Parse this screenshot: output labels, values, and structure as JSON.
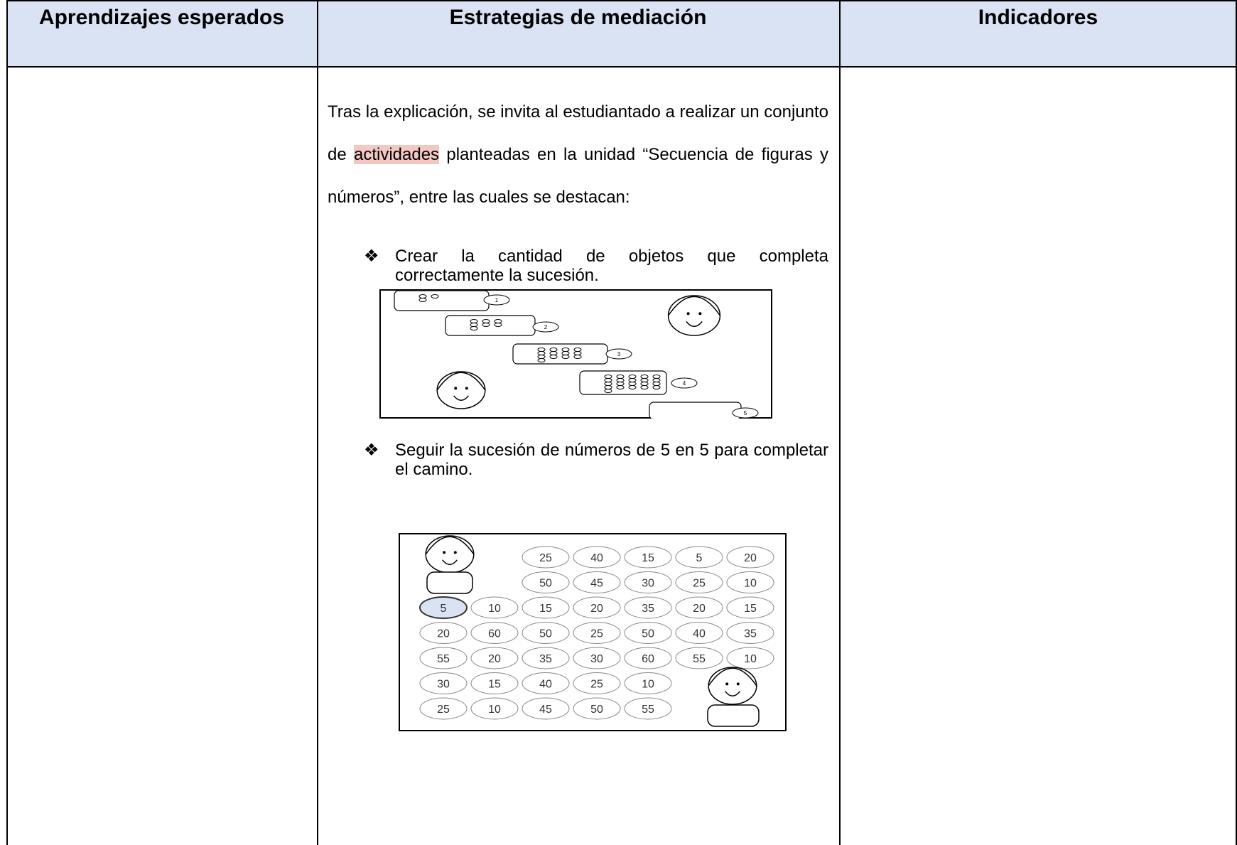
{
  "table": {
    "headers": [
      "Aprendizajes esperados",
      "Estrategias de mediación",
      "Indicadores"
    ],
    "paragraph": {
      "before": "Tras la explicación, se invita al estudiantado a realizar un conjunto de ",
      "highlight": "actividades",
      "after": " planteadas en la unidad “Secuencia de figuras y números”, entre las cuales se destacan:"
    },
    "bullets": [
      {
        "symbol": "❖",
        "text": "Crear la cantidad de objetos que completa correctamente la sucesión."
      },
      {
        "symbol": "❖",
        "text": "Seguir la sucesión de números de 5 en 5 para completar el camino."
      }
    ],
    "figure1": {
      "labels": [
        "1",
        "2",
        "3",
        "4",
        "5"
      ]
    },
    "figure2": {
      "grid": [
        [
          25,
          40,
          15,
          5,
          20
        ],
        [
          50,
          45,
          30,
          25,
          10
        ],
        [
          5,
          10,
          15,
          20,
          35,
          20,
          15
        ],
        [
          20,
          60,
          50,
          25,
          50,
          40,
          35
        ],
        [
          55,
          20,
          35,
          30,
          60,
          55,
          10
        ],
        [
          30,
          15,
          40,
          25,
          10
        ],
        [
          25,
          10,
          45,
          50,
          55
        ]
      ]
    }
  }
}
